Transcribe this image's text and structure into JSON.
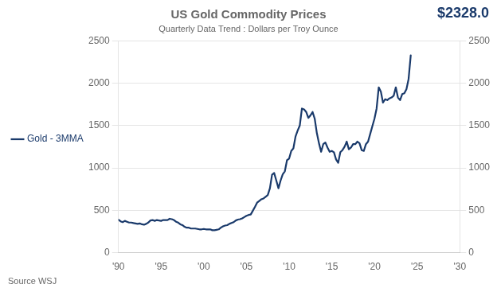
{
  "chart_data": {
    "type": "line",
    "title": "US Gold Commodity Prices",
    "subtitle": "Quarterly Data Trend : Dollars per Troy Ounce",
    "annotations": [
      "$2328.0"
    ],
    "source": "Source WSJ",
    "x": [
      1990.0,
      1990.25,
      1990.5,
      1990.75,
      1991.0,
      1991.25,
      1991.5,
      1991.75,
      1992.0,
      1992.25,
      1992.5,
      1992.75,
      1993.0,
      1993.25,
      1993.5,
      1993.75,
      1994.0,
      1994.25,
      1994.5,
      1994.75,
      1995.0,
      1995.25,
      1995.5,
      1995.75,
      1996.0,
      1996.25,
      1996.5,
      1996.75,
      1997.0,
      1997.25,
      1997.5,
      1997.75,
      1998.0,
      1998.25,
      1998.5,
      1998.75,
      1999.0,
      1999.25,
      1999.5,
      1999.75,
      2000.0,
      2000.25,
      2000.5,
      2000.75,
      2001.0,
      2001.25,
      2001.5,
      2001.75,
      2002.0,
      2002.25,
      2002.5,
      2002.75,
      2003.0,
      2003.25,
      2003.5,
      2003.75,
      2004.0,
      2004.25,
      2004.5,
      2004.75,
      2005.0,
      2005.25,
      2005.5,
      2005.75,
      2006.0,
      2006.25,
      2006.5,
      2006.75,
      2007.0,
      2007.25,
      2007.5,
      2007.75,
      2008.0,
      2008.25,
      2008.5,
      2008.75,
      2009.0,
      2009.25,
      2009.5,
      2009.75,
      2010.0,
      2010.25,
      2010.5,
      2010.75,
      2011.0,
      2011.25,
      2011.5,
      2011.75,
      2012.0,
      2012.25,
      2012.5,
      2012.75,
      2013.0,
      2013.25,
      2013.5,
      2013.75,
      2014.0,
      2014.25,
      2014.5,
      2014.75,
      2015.0,
      2015.25,
      2015.5,
      2015.75,
      2016.0,
      2016.25,
      2016.5,
      2016.75,
      2017.0,
      2017.25,
      2017.5,
      2017.75,
      2018.0,
      2018.25,
      2018.5,
      2018.75,
      2019.0,
      2019.25,
      2019.5,
      2019.75,
      2020.0,
      2020.25,
      2020.5,
      2020.75,
      2021.0,
      2021.25,
      2021.5,
      2021.75,
      2022.0,
      2022.25,
      2022.5,
      2022.75,
      2023.0,
      2023.25,
      2023.5,
      2023.75,
      2024.0,
      2024.25
    ],
    "series": [
      {
        "name": "Gold - 3MMA",
        "color": "#1a3a6b",
        "values": [
          390,
          370,
          360,
          375,
          365,
          355,
          355,
          350,
          345,
          340,
          345,
          335,
          330,
          340,
          355,
          380,
          385,
          375,
          385,
          380,
          375,
          385,
          385,
          385,
          400,
          395,
          385,
          365,
          355,
          335,
          325,
          305,
          295,
          295,
          285,
          285,
          285,
          280,
          275,
          275,
          280,
          275,
          275,
          275,
          265,
          265,
          270,
          275,
          295,
          310,
          320,
          325,
          340,
          350,
          360,
          380,
          390,
          395,
          405,
          420,
          435,
          445,
          450,
          495,
          540,
          590,
          610,
          630,
          640,
          660,
          680,
          760,
          920,
          940,
          850,
          760,
          850,
          925,
          960,
          1090,
          1110,
          1200,
          1230,
          1370,
          1440,
          1500,
          1700,
          1690,
          1660,
          1590,
          1620,
          1660,
          1580,
          1410,
          1290,
          1190,
          1280,
          1300,
          1240,
          1190,
          1200,
          1185,
          1100,
          1060,
          1185,
          1210,
          1250,
          1310,
          1220,
          1240,
          1280,
          1280,
          1310,
          1290,
          1210,
          1200,
          1280,
          1310,
          1400,
          1490,
          1580,
          1700,
          1950,
          1900,
          1770,
          1810,
          1800,
          1820,
          1830,
          1850,
          1950,
          1830,
          1800,
          1870,
          1880,
          1930,
          2050,
          2328
        ]
      }
    ],
    "xlim": [
      1990,
      2030
    ],
    "xticks": [
      {
        "value": 1990,
        "label": "'90"
      },
      {
        "value": 1995,
        "label": "'95"
      },
      {
        "value": 2000,
        "label": "'00"
      },
      {
        "value": 2005,
        "label": "'05"
      },
      {
        "value": 2010,
        "label": "'10"
      },
      {
        "value": 2015,
        "label": "'15"
      },
      {
        "value": 2020,
        "label": "'20"
      },
      {
        "value": 2025,
        "label": "'25"
      },
      {
        "value": 2030,
        "label": "'30"
      }
    ],
    "ylim": [
      0,
      2500
    ],
    "yticks": [
      0,
      500,
      1000,
      1500,
      2000,
      2500
    ],
    "y2lim": [
      0,
      2500
    ],
    "y2ticks": [
      0,
      500,
      1000,
      1500,
      2000,
      2500
    ],
    "grid": true,
    "legend": "left"
  }
}
